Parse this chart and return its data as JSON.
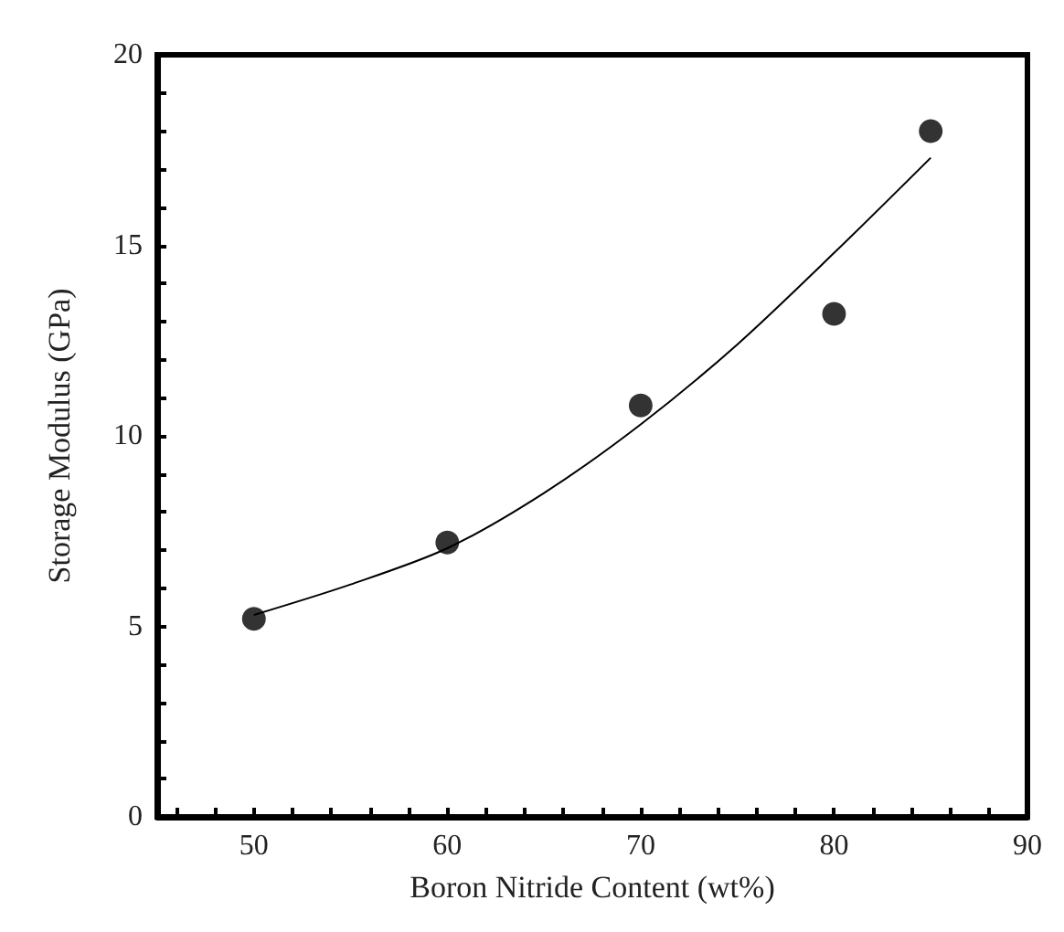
{
  "chart_data": {
    "type": "scatter",
    "xlabel": "Boron Nitride Content (wt%)",
    "ylabel": "Storage Modulus (GPa)",
    "xlim": [
      45,
      90
    ],
    "ylim": [
      0,
      20
    ],
    "xticks": [
      {
        "value": 46,
        "label": null
      },
      {
        "value": 48,
        "label": null
      },
      50,
      {
        "value": 52,
        "label": null
      },
      {
        "value": 54,
        "label": null
      },
      {
        "value": 56,
        "label": null
      },
      {
        "value": 58,
        "label": null
      },
      60,
      {
        "value": 62,
        "label": null
      },
      {
        "value": 64,
        "label": null
      },
      {
        "value": 66,
        "label": null
      },
      {
        "value": 68,
        "label": null
      },
      70,
      {
        "value": 72,
        "label": null
      },
      {
        "value": 74,
        "label": null
      },
      {
        "value": 76,
        "label": null
      },
      {
        "value": 78,
        "label": null
      },
      80,
      {
        "value": 82,
        "label": null
      },
      {
        "value": 84,
        "label": null
      },
      {
        "value": 86,
        "label": null
      },
      {
        "value": 88,
        "label": null
      },
      90
    ],
    "yticks": [
      0,
      {
        "value": 1,
        "label": null
      },
      {
        "value": 2,
        "label": null
      },
      {
        "value": 3,
        "label": null
      },
      {
        "value": 4,
        "label": null
      },
      5,
      {
        "value": 6,
        "label": null
      },
      {
        "value": 7,
        "label": null
      },
      {
        "value": 8,
        "label": null
      },
      {
        "value": 9,
        "label": null
      },
      10,
      {
        "value": 11,
        "label": null
      },
      {
        "value": 12,
        "label": null
      },
      {
        "value": 13,
        "label": null
      },
      {
        "value": 14,
        "label": null
      },
      15,
      {
        "value": 16,
        "label": null
      },
      {
        "value": 17,
        "label": null
      },
      {
        "value": 18,
        "label": null
      },
      {
        "value": 19,
        "label": null
      },
      20
    ],
    "grid": false,
    "marker": "circle",
    "series": [
      {
        "color": "#000000",
        "x": [
          50,
          60,
          70,
          80,
          85
        ],
        "values": [
          5.2,
          7.2,
          10.8,
          13.2,
          18.0
        ]
      },
      {
        "type": "line",
        "color": "#000000",
        "marker": "none",
        "line_style": "solid",
        "x": [
          50,
          55,
          60,
          65,
          70,
          75,
          80,
          85
        ],
        "values": [
          5.3,
          6.1,
          7.05,
          8.5,
          10.3,
          12.4,
          14.8,
          17.3
        ]
      }
    ]
  }
}
